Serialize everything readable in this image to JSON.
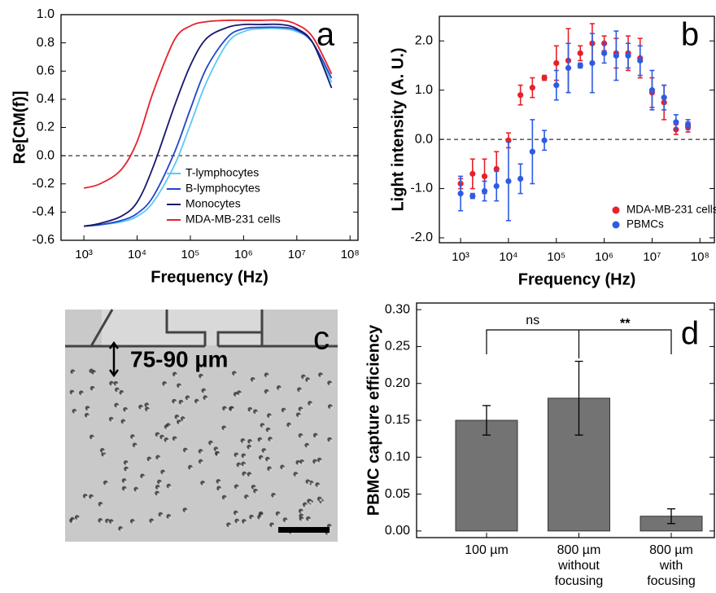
{
  "chart_data": [
    {
      "type": "line",
      "panel_label": "a",
      "xlabel": "Frequency (Hz)",
      "ylabel": "Re[CM(f)]",
      "xscale": "log",
      "xlim": [
        372,
        141000000
      ],
      "ylim": [
        -0.6,
        1.0
      ],
      "xticks": [
        {
          "value": 1000,
          "label": "10³"
        },
        {
          "value": 10000,
          "label": "10⁴"
        },
        {
          "value": 100000,
          "label": "10⁵"
        },
        {
          "value": 1000000,
          "label": "10⁶"
        },
        {
          "value": 10000000,
          "label": "10⁷"
        },
        {
          "value": 100000000,
          "label": "10⁸"
        }
      ],
      "yticks": [
        {
          "value": 1,
          "label": "1.0"
        },
        0.8,
        0.6,
        0.4,
        0.2,
        {
          "value": 0,
          "label": "0.0"
        },
        -0.2,
        -0.4,
        -0.6
      ],
      "hline": 0,
      "legend": "lower right",
      "x": [
        1000,
        2000,
        5000,
        10000,
        20000,
        50000,
        100000,
        200000,
        500000,
        1000000,
        2000000,
        5000000,
        10000000,
        20000000,
        45000000
      ],
      "series": [
        {
          "name": "T-lymphocytes",
          "color": "#5bc8f5",
          "values": [
            -0.5,
            -0.49,
            -0.47,
            -0.43,
            -0.33,
            -0.07,
            0.22,
            0.52,
            0.8,
            0.88,
            0.9,
            0.9,
            0.88,
            0.8,
            0.52
          ]
        },
        {
          "name": "B-lymphocytes",
          "color": "#2445c8",
          "values": [
            -0.5,
            -0.49,
            -0.46,
            -0.41,
            -0.29,
            0.02,
            0.33,
            0.62,
            0.84,
            0.9,
            0.91,
            0.91,
            0.89,
            0.8,
            0.55
          ]
        },
        {
          "name": "Monocytes",
          "color": "#16186a",
          "values": [
            -0.5,
            -0.48,
            -0.43,
            -0.33,
            -0.08,
            0.35,
            0.64,
            0.83,
            0.91,
            0.93,
            0.93,
            0.93,
            0.9,
            0.8,
            0.48
          ]
        },
        {
          "name": "MDA-MB-231 cells",
          "color": "#e8202a",
          "values": [
            -0.23,
            -0.2,
            -0.1,
            0.1,
            0.45,
            0.82,
            0.92,
            0.95,
            0.96,
            0.96,
            0.96,
            0.96,
            0.93,
            0.84,
            0.58
          ]
        }
      ]
    },
    {
      "type": "scatter",
      "panel_label": "b",
      "xlabel": "Frequency (Hz)",
      "ylabel": "Light intensity (A. U.)",
      "xscale": "log",
      "xlim": [
        360,
        200000000
      ],
      "ylim": [
        -2.1,
        2.5
      ],
      "xticks": [
        {
          "value": 1000,
          "label": "10³"
        },
        {
          "value": 10000,
          "label": "10⁴"
        },
        {
          "value": 100000,
          "label": "10⁵"
        },
        {
          "value": 1000000,
          "label": "10⁶"
        },
        {
          "value": 10000000,
          "label": "10⁷"
        },
        {
          "value": 100000000,
          "label": "10⁸"
        }
      ],
      "yticks": [
        {
          "value": 2,
          "label": "2.0"
        },
        {
          "value": 1,
          "label": "1.0"
        },
        {
          "value": 0,
          "label": "0.0"
        },
        {
          "value": -1,
          "label": "-1.0"
        },
        {
          "value": -2,
          "label": "-2.0"
        }
      ],
      "hline": 0,
      "legend": "lower right",
      "x": [
        1000,
        1778,
        3162,
        5623,
        10000,
        17783,
        31623,
        56234,
        100000,
        177828,
        316228,
        562341,
        1000000,
        1778279,
        3162278,
        5623413,
        10000000,
        17782794,
        31622777,
        56234133
      ],
      "series": [
        {
          "name": "MDA-MB-231 cells",
          "color": "#e8202a",
          "values": [
            -0.9,
            -0.7,
            -0.75,
            -0.6,
            -0.02,
            0.9,
            1.05,
            1.25,
            1.55,
            1.6,
            1.75,
            1.95,
            1.95,
            1.75,
            1.75,
            1.65,
            0.95,
            0.75,
            0.2,
            0.25
          ],
          "errors": [
            0.1,
            0.3,
            0.35,
            0.35,
            0.15,
            0.2,
            0.2,
            0.05,
            0.35,
            0.65,
            0.15,
            0.4,
            0.15,
            0.3,
            0.35,
            0.4,
            0.3,
            0.35,
            0.1,
            0.1
          ]
        },
        {
          "name": "PBMCs",
          "color": "#2d5be3",
          "values": [
            -1.1,
            -1.15,
            -1.05,
            -0.95,
            -0.85,
            -0.8,
            -0.25,
            -0.02,
            1.1,
            1.45,
            1.5,
            1.55,
            1.75,
            1.7,
            1.7,
            1.6,
            1.0,
            0.85,
            0.35,
            0.3
          ],
          "errors": [
            0.35,
            0.05,
            0.2,
            0.3,
            0.8,
            0.3,
            0.65,
            0.2,
            0.3,
            0.5,
            0.05,
            0.6,
            0.2,
            0.5,
            0.25,
            0.3,
            0.4,
            0.25,
            0.15,
            0.1
          ]
        }
      ]
    },
    {
      "type": "image",
      "panel_label": "c",
      "annotation": "75-90 µm"
    },
    {
      "type": "bar",
      "panel_label": "d",
      "ylabel": "PBMC capture efficiency",
      "ylim": [
        -0.009,
        0.309
      ],
      "yticks": [
        {
          "value": 0,
          "label": "0.00"
        },
        {
          "value": 0.05,
          "label": "0.05"
        },
        {
          "value": 0.1,
          "label": "0.10"
        },
        {
          "value": 0.15,
          "label": "0.15"
        },
        {
          "value": 0.2,
          "label": "0.20"
        },
        {
          "value": 0.25,
          "label": "0.25"
        },
        {
          "value": 0.3,
          "label": "0.30"
        }
      ],
      "categories": [
        "100 µm",
        "800 µm without focusing",
        "800 µm with focusing"
      ],
      "values": [
        0.15,
        0.18,
        0.02
      ],
      "errors": [
        0.02,
        0.05,
        0.01
      ],
      "color": "#737373",
      "annotations": [
        "ns",
        "**"
      ]
    }
  ]
}
